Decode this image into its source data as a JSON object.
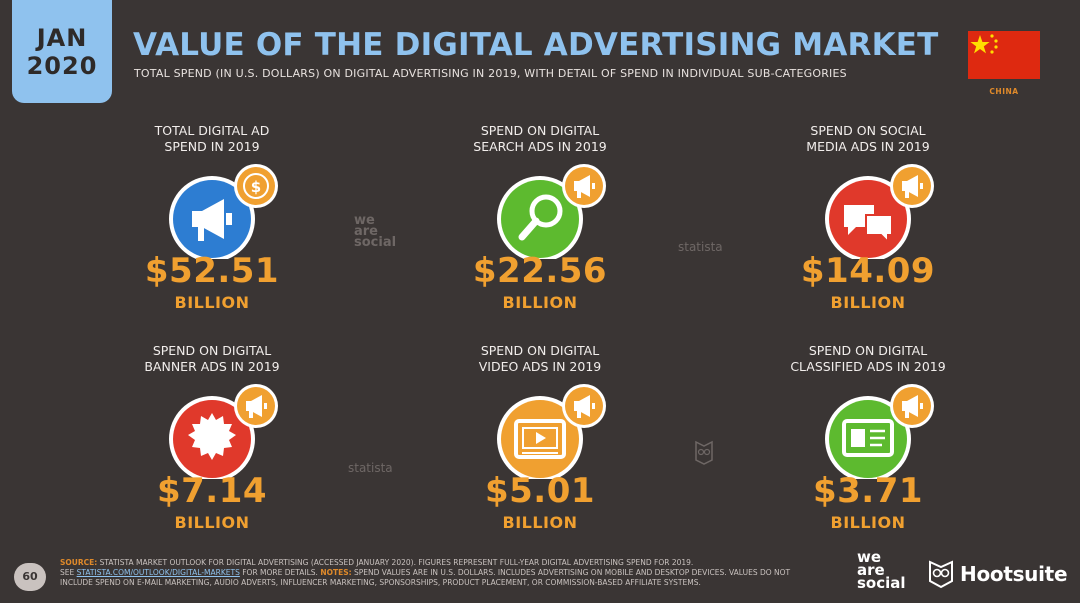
{
  "header": {
    "month": "JAN",
    "year": "2020",
    "title": "VALUE OF THE DIGITAL ADVERTISING MARKET",
    "subtitle": "TOTAL SPEND (IN U.S. DOLLARS) ON DIGITAL ADVERTISING IN 2019, WITH DETAIL OF SPEND IN INDIVIDUAL SUB-CATEGORIES"
  },
  "country": {
    "label": "CHINA",
    "flag_color": "#de2910",
    "star_color": "#ffde00"
  },
  "cards": [
    {
      "label1": "TOTAL DIGITAL AD",
      "label2": "SPEND IN 2019",
      "value": "$52.51",
      "unit": "BILLION",
      "icon": "megaphone-dollar-icon",
      "color": "#2d7dd2"
    },
    {
      "label1": "SPEND ON DIGITAL",
      "label2": "SEARCH ADS IN 2019",
      "value": "$22.56",
      "unit": "BILLION",
      "icon": "magnifier-icon",
      "color": "#5dba2f"
    },
    {
      "label1": "SPEND ON SOCIAL",
      "label2": "MEDIA ADS IN 2019",
      "value": "$14.09",
      "unit": "BILLION",
      "icon": "chat-bubbles-icon",
      "color": "#e0392b"
    },
    {
      "label1": "SPEND ON DIGITAL",
      "label2": "BANNER ADS IN 2019",
      "value": "$7.14",
      "unit": "BILLION",
      "icon": "starburst-icon",
      "color": "#e0392b"
    },
    {
      "label1": "SPEND ON DIGITAL",
      "label2": "VIDEO ADS IN 2019",
      "value": "$5.01",
      "unit": "BILLION",
      "icon": "video-player-icon",
      "color": "#f0a030"
    },
    {
      "label1": "SPEND ON DIGITAL",
      "label2": "CLASSIFIED ADS IN 2019",
      "value": "$3.71",
      "unit": "BILLION",
      "icon": "id-card-icon",
      "color": "#5dba2f"
    }
  ],
  "watermarks": {
    "we_are_social": "we are social",
    "statista": "statista"
  },
  "footer": {
    "source_label": "SOURCE:",
    "source_text": " STATISTA MARKET OUTLOOK FOR DIGITAL ADVERTISING (ACCESSED JANUARY 2020). FIGURES REPRESENT FULL-YEAR DIGITAL ADVERTISING SPEND FOR 2019.",
    "see": "SEE ",
    "link": "STATISTA.COM/OUTLOOK/DIGITAL-MARKETS",
    "more": " FOR MORE DETAILS. ",
    "notes_label": "NOTES:",
    "notes_text": " SPEND VALUES ARE IN U.S. DOLLARS. INCLUDES ADVERTISING ON MOBILE AND DESKTOP DEVICES. VALUES DO NOT INCLUDE SPEND ON E-MAIL MARKETING, AUDIO ADVERTS, INFLUENCER MARKETING, SPONSORSHIPS, PRODUCT PLACEMENT, OR COMMISSION-BASED AFFILIATE SYSTEMS."
  },
  "page_number": "60",
  "logos": {
    "we1": "we",
    "we2": "are",
    "we3": "social",
    "hootsuite": "Hootsuite"
  }
}
